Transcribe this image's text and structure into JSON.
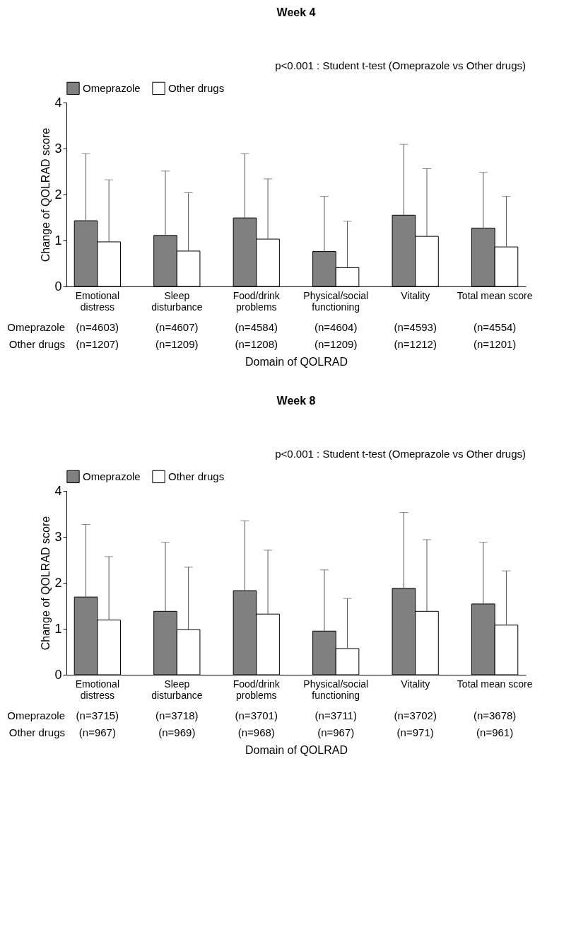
{
  "chart_data": [
    {
      "type": "bar",
      "title": "Week 4",
      "subtitle": "p<0.001 : Student t-test (Omeprazole vs Other drugs)",
      "xlabel": "Domain of QOLRAD",
      "ylabel": "Change of QOLRAD score",
      "categories": [
        "Emotional\ndistress",
        "Sleep\ndisturbance",
        "Food/drink\nproblems",
        "Physical/social\nfunctioning",
        "Vitality",
        "Total mean score"
      ],
      "series": [
        {
          "name": "Omeprazole",
          "color": "#808080",
          "values": [
            1.43,
            1.11,
            1.49,
            0.76,
            1.55,
            1.27
          ],
          "errors": [
            [
              1.43,
              2.89
            ],
            [
              1.11,
              2.51
            ],
            [
              1.49,
              2.89
            ],
            [
              0.76,
              1.96
            ],
            [
              1.55,
              3.09
            ],
            [
              1.27,
              2.48
            ]
          ]
        },
        {
          "name": "Other drugs",
          "color": "#ffffff",
          "values": [
            0.97,
            0.77,
            1.03,
            0.41,
            1.09,
            0.86
          ],
          "errors": [
            [
              0.97,
              2.32
            ],
            [
              0.77,
              2.04
            ],
            [
              1.03,
              2.34
            ],
            [
              0.41,
              1.42
            ],
            [
              1.09,
              2.56
            ],
            [
              0.86,
              1.96
            ]
          ]
        }
      ],
      "ylim": [
        0,
        4
      ],
      "yticks": [
        0,
        1,
        2,
        3,
        4
      ],
      "grid": false,
      "legend": "top left",
      "annotations": [
        "Omeprazole",
        "(n=4603)",
        "(n=4607)",
        "(n=4584)",
        "(n=4604)",
        "(n=4593)",
        "(n=4554)",
        "Other drugs",
        "(n=1207)",
        "(n=1209)",
        "(n=1208)",
        "(n=1209)",
        "(n=1212)",
        "(n=1201)"
      ]
    },
    {
      "type": "bar",
      "title": "Week 8",
      "subtitle": "p<0.001 : Student t-test (Omeprazole vs Other drugs)",
      "xlabel": "Domain of QOLRAD",
      "ylabel": "Change of QOLRAD score",
      "categories": [
        "Emotional\ndistress",
        "Sleep\ndisturbance",
        "Food/drink\nproblems",
        "Physical/social\nfunctioning",
        "Vitality",
        "Total mean score"
      ],
      "series": [
        {
          "name": "Omeprazole",
          "color": "#808080",
          "values": [
            1.69,
            1.38,
            1.83,
            0.95,
            1.88,
            1.54
          ],
          "errors": [
            [
              1.69,
              3.27
            ],
            [
              1.38,
              2.88
            ],
            [
              1.83,
              3.35
            ],
            [
              0.95,
              2.28
            ],
            [
              1.88,
              3.53
            ],
            [
              1.54,
              2.88
            ]
          ]
        },
        {
          "name": "Other drugs",
          "color": "#ffffff",
          "values": [
            1.19,
            0.98,
            1.32,
            0.57,
            1.38,
            1.08
          ],
          "errors": [
            [
              1.19,
              2.57
            ],
            [
              0.98,
              2.34
            ],
            [
              1.32,
              2.71
            ],
            [
              0.57,
              1.66
            ],
            [
              1.38,
              2.94
            ],
            [
              1.08,
              2.26
            ]
          ]
        }
      ],
      "ylim": [
        0,
        4
      ],
      "yticks": [
        0,
        1,
        2,
        3,
        4
      ],
      "grid": false,
      "legend": "top left",
      "annotations": [
        "Omeprazole",
        "(n=3715)",
        "(n=3718)",
        "(n=3701)",
        "(n=3711)",
        "(n=3702)",
        "(n=3678)",
        "Other drugs",
        "(n=967)",
        "(n=969)",
        "(n=968)",
        "(n=967)",
        "(n=971)",
        "(n=961)"
      ]
    }
  ]
}
